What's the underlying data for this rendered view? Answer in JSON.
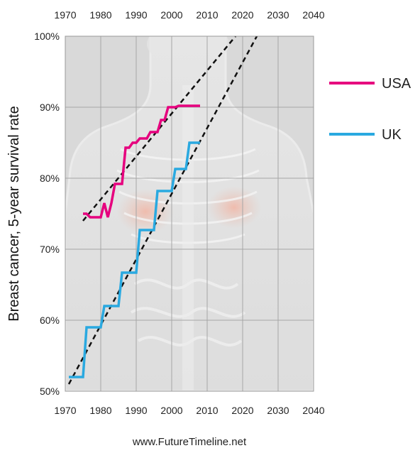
{
  "chart_data": {
    "type": "line",
    "ylabel": "Breast cancer, 5-year survival rate",
    "xlim": [
      1970,
      2040
    ],
    "ylim": [
      50,
      100
    ],
    "x_ticks": [
      1970,
      1980,
      1990,
      2000,
      2010,
      2020,
      2030,
      2040
    ],
    "y_ticks": [
      50,
      60,
      70,
      80,
      90,
      100
    ],
    "y_tick_labels": [
      "50%",
      "60%",
      "70%",
      "80%",
      "90%",
      "100%"
    ],
    "grid": true,
    "legend_position": "right",
    "colors": {
      "USA": "#e6007e",
      "UK": "#2aa9e0",
      "trend": "#111111",
      "plot_bg": "#d9d9d9"
    },
    "series": [
      {
        "name": "USA",
        "x": [
          1975,
          1976,
          1977,
          1978,
          1979,
          1980,
          1981,
          1982,
          1983,
          1984,
          1985,
          1986,
          1987,
          1988,
          1989,
          1990,
          1991,
          1992,
          1993,
          1994,
          1995,
          1996,
          1997,
          1998,
          1999,
          2000,
          2001,
          2002,
          2003,
          2004,
          2005,
          2006,
          2007,
          2008
        ],
        "y": [
          75.0,
          75.0,
          74.5,
          74.5,
          74.5,
          74.5,
          76.5,
          74.5,
          76.5,
          79.2,
          79.2,
          79.2,
          84.3,
          84.3,
          85.0,
          85.0,
          85.6,
          85.6,
          85.6,
          86.5,
          86.5,
          86.5,
          88.2,
          88.2,
          90.0,
          90.0,
          90.0,
          90.2,
          90.2,
          90.2,
          90.2,
          90.2,
          90.2,
          90.2
        ]
      },
      {
        "name": "UK",
        "x": [
          1971,
          1972,
          1973,
          1974,
          1975,
          1976,
          1977,
          1978,
          1979,
          1980,
          1981,
          1982,
          1983,
          1984,
          1985,
          1986,
          1987,
          1988,
          1989,
          1990,
          1991,
          1992,
          1993,
          1994,
          1995,
          1996,
          1997,
          1998,
          1999,
          2000,
          2001,
          2002,
          2003,
          2004,
          2005,
          2006,
          2007,
          2008
        ],
        "y": [
          52.0,
          52.0,
          52.0,
          52.0,
          52.0,
          59.0,
          59.0,
          59.0,
          59.0,
          59.0,
          62.0,
          62.0,
          62.0,
          62.0,
          62.0,
          66.7,
          66.7,
          66.7,
          66.7,
          66.7,
          72.7,
          72.7,
          72.7,
          72.7,
          72.7,
          78.2,
          78.2,
          78.2,
          78.2,
          78.2,
          81.3,
          81.3,
          81.3,
          81.3,
          85.0,
          85.0,
          85.0,
          85.0
        ]
      }
    ],
    "trendlines": [
      {
        "series": "USA",
        "x": [
          1975,
          2018
        ],
        "y": [
          74.0,
          100.0
        ]
      },
      {
        "series": "UK",
        "x": [
          1971,
          2024
        ],
        "y": [
          51.0,
          100.0
        ]
      }
    ]
  },
  "footer": "www.FutureTimeline.net"
}
